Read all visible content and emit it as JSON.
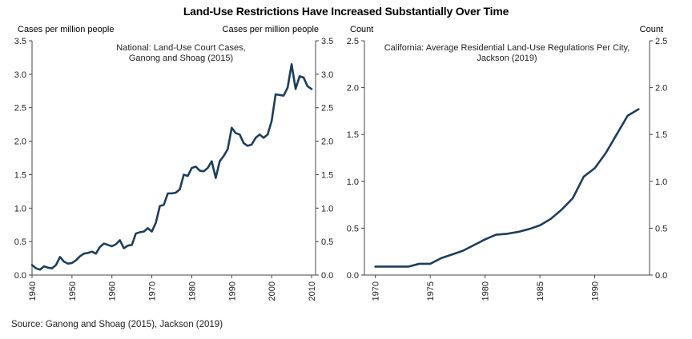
{
  "title": "Land-Use Restrictions Have Increased Substantially Over Time",
  "source": "Source: Ganong and Shoag (2015), Jackson (2019)",
  "chart_data": [
    {
      "type": "line",
      "annotation": [
        "National: Land-Use Court Cases,",
        "Ganong and Shoag (2015)"
      ],
      "ylabel_left": "Cases per million people",
      "ylabel_right": "Cases per million people",
      "xlim": [
        1940,
        2011
      ],
      "ylim": [
        0,
        3.5
      ],
      "xticks": [
        "1940",
        "1950",
        "1960",
        "1970",
        "1980",
        "1990",
        "2000",
        "2010"
      ],
      "yticks": [
        "0.0",
        "0.5",
        "1.0",
        "1.5",
        "2.0",
        "2.5",
        "3.0",
        "3.5"
      ],
      "color": "#1d3e5c",
      "x": [
        1940,
        1941,
        1942,
        1943,
        1944,
        1945,
        1946,
        1947,
        1948,
        1949,
        1950,
        1951,
        1952,
        1953,
        1954,
        1955,
        1956,
        1957,
        1958,
        1959,
        1960,
        1961,
        1962,
        1963,
        1964,
        1965,
        1966,
        1967,
        1968,
        1969,
        1970,
        1971,
        1972,
        1973,
        1974,
        1975,
        1976,
        1977,
        1978,
        1979,
        1980,
        1981,
        1982,
        1983,
        1984,
        1985,
        1986,
        1987,
        1988,
        1989,
        1990,
        1991,
        1992,
        1993,
        1994,
        1995,
        1996,
        1997,
        1998,
        1999,
        2000,
        2001,
        2002,
        2003,
        2004,
        2005,
        2006,
        2007,
        2008,
        2009,
        2010
      ],
      "y": [
        0.15,
        0.1,
        0.08,
        0.13,
        0.11,
        0.1,
        0.15,
        0.27,
        0.2,
        0.17,
        0.18,
        0.22,
        0.28,
        0.32,
        0.33,
        0.35,
        0.32,
        0.42,
        0.47,
        0.45,
        0.43,
        0.46,
        0.52,
        0.4,
        0.44,
        0.45,
        0.62,
        0.64,
        0.65,
        0.7,
        0.65,
        0.78,
        1.03,
        1.05,
        1.22,
        1.22,
        1.23,
        1.28,
        1.5,
        1.48,
        1.6,
        1.62,
        1.56,
        1.55,
        1.6,
        1.7,
        1.45,
        1.7,
        1.78,
        1.88,
        2.2,
        2.12,
        2.1,
        1.97,
        1.93,
        1.95,
        2.05,
        2.1,
        2.05,
        2.1,
        2.3,
        2.7,
        2.69,
        2.68,
        2.8,
        3.15,
        2.78,
        2.97,
        2.95,
        2.82,
        2.78
      ]
    },
    {
      "type": "line",
      "annotation": [
        "California: Average Residential Land-Use Regulations Per City,",
        "Jackson (2019)"
      ],
      "ylabel_left": "Count",
      "ylabel_right": "Count",
      "xlim": [
        1969,
        1995
      ],
      "ylim": [
        0,
        2.5
      ],
      "xticks": [
        "1970",
        "1975",
        "1980",
        "1985",
        "1990"
      ],
      "yticks": [
        "0.0",
        "0.5",
        "1.0",
        "1.5",
        "2.0",
        "2.5"
      ],
      "color": "#1d3e5c",
      "x": [
        1970,
        1971,
        1972,
        1973,
        1974,
        1975,
        1976,
        1977,
        1978,
        1979,
        1980,
        1981,
        1982,
        1983,
        1984,
        1985,
        1986,
        1987,
        1988,
        1989,
        1990,
        1991,
        1992,
        1993,
        1994
      ],
      "y": [
        0.09,
        0.09,
        0.09,
        0.09,
        0.12,
        0.12,
        0.18,
        0.22,
        0.26,
        0.32,
        0.38,
        0.43,
        0.44,
        0.46,
        0.49,
        0.53,
        0.6,
        0.7,
        0.82,
        1.05,
        1.14,
        1.3,
        1.5,
        1.7,
        1.77
      ]
    }
  ]
}
